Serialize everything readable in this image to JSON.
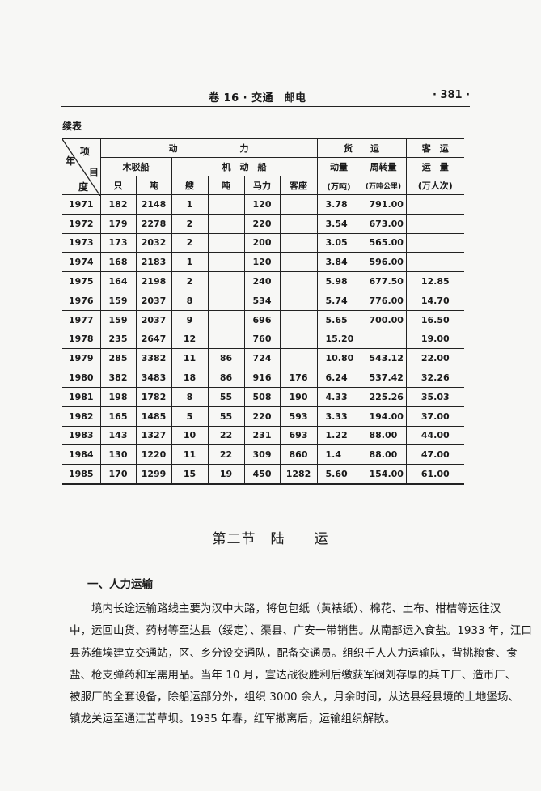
{
  "running_head": {
    "title": "卷 16 · 交通　邮电",
    "page_number": "· 381 ·"
  },
  "table": {
    "continuation_label": "续表",
    "corner": {
      "item": "项",
      "year": "年",
      "mu": "目",
      "du": "度"
    },
    "group_headers": {
      "power": "动　　　　　　　力",
      "freight": "货　　运",
      "passenger": "客　运"
    },
    "sub_headers": {
      "wooden_boat": "木驳船",
      "motor_boat": "机　动　船",
      "volume": "动量",
      "turnover": "周转量",
      "passenger_volume": "运　量"
    },
    "columns": [
      "只",
      "吨",
      "艘",
      "吨",
      "马力",
      "客座",
      "(万吨)",
      "(万吨公里)",
      "(万人次)"
    ],
    "rows": [
      [
        "1971",
        "182",
        "2148",
        "1",
        "",
        "120",
        "",
        "3.78",
        "791.00",
        ""
      ],
      [
        "1972",
        "179",
        "2278",
        "2",
        "",
        "220",
        "",
        "3.54",
        "673.00",
        ""
      ],
      [
        "1973",
        "173",
        "2032",
        "2",
        "",
        "200",
        "",
        "3.05",
        "565.00",
        ""
      ],
      [
        "1974",
        "168",
        "2183",
        "1",
        "",
        "120",
        "",
        "3.84",
        "596.00",
        ""
      ],
      [
        "1975",
        "164",
        "2198",
        "2",
        "",
        "240",
        "",
        "5.98",
        "677.50",
        "12.85"
      ],
      [
        "1976",
        "159",
        "2037",
        "8",
        "",
        "534",
        "",
        "5.74",
        "776.00",
        "14.70"
      ],
      [
        "1977",
        "159",
        "2037",
        "9",
        "",
        "696",
        "",
        "5.65",
        "700.00",
        "16.50"
      ],
      [
        "1978",
        "235",
        "2647",
        "12",
        "",
        "760",
        "",
        "15.20",
        "",
        "19.00"
      ],
      [
        "1979",
        "285",
        "3382",
        "11",
        "86",
        "724",
        "",
        "10.80",
        "543.12",
        "22.00"
      ],
      [
        "1980",
        "382",
        "3483",
        "18",
        "86",
        "916",
        "176",
        "6.24",
        "537.42",
        "32.26"
      ],
      [
        "1981",
        "198",
        "1782",
        "8",
        "55",
        "508",
        "190",
        "4.33",
        "225.26",
        "35.03"
      ],
      [
        "1982",
        "165",
        "1485",
        "5",
        "55",
        "220",
        "593",
        "3.33",
        "194.00",
        "37.00"
      ],
      [
        "1983",
        "143",
        "1327",
        "10",
        "22",
        "231",
        "693",
        "1.22",
        "88.00",
        "44.00"
      ],
      [
        "1984",
        "130",
        "1220",
        "11",
        "22",
        "309",
        "860",
        "1.4",
        "88.00",
        "47.00"
      ],
      [
        "1985",
        "170",
        "1299",
        "15",
        "19",
        "450",
        "1282",
        "5.60",
        "154.00",
        "61.00"
      ]
    ]
  },
  "section": {
    "title": "第二节　陆　　运",
    "subheading": "一、人力运输",
    "paragraph_lines": [
      "　　境内长途运输路线主要为汉中大路，将包包纸（黄裱纸）、棉花、土布、柑桔等运往汉",
      "中，运回山货、药材等至达县（绥定）、渠县、广安一带销售。从南部运入食盐。1933 年，江口",
      "县苏维埃建立交通站，区、乡分设交通队，配备交通员。组织千人人力运输队，背挑粮食、食",
      "盐、枪支弹药和军需用品。当年 10 月，宣达战役胜利后缴获军阀刘存厚的兵工厂、造币厂、",
      "被服厂的全套设备，除船运部分外，组织 3000 余人，月余时间，从达县经县境的土地堡场、",
      "镇龙关运至通江苦草坝。1935 年春，红军撤离后，运输组织解散。"
    ]
  }
}
